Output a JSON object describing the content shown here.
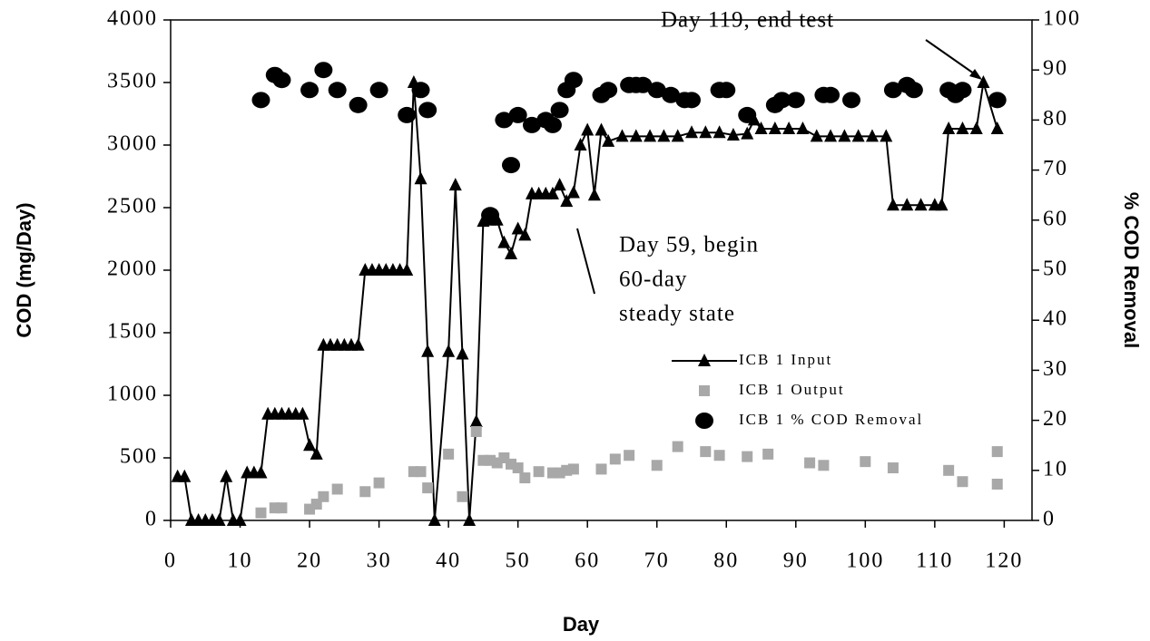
{
  "chart_data": {
    "type": "line",
    "x_label": "Day",
    "y_label": "COD (mg/Day)",
    "y2_label": "% COD Removal",
    "xlim": [
      0,
      124
    ],
    "xticks": [
      0,
      10,
      20,
      30,
      40,
      50,
      60,
      70,
      80,
      90,
      100,
      110,
      120
    ],
    "ylim": [
      0,
      4000
    ],
    "yticks": [
      0,
      500,
      1000,
      1500,
      2000,
      2500,
      3000,
      3500,
      4000
    ],
    "y2lim": [
      0,
      100
    ],
    "y2ticks": [
      0,
      10,
      20,
      30,
      40,
      50,
      60,
      70,
      80,
      90,
      100
    ],
    "annotations": [
      {
        "lines": [
          "Day 119, end test"
        ]
      },
      {
        "lines": [
          "Day 59, begin",
          "60-day",
          "steady state"
        ]
      }
    ],
    "series": [
      {
        "name": "ICB 1 Input",
        "color": "#000000",
        "marker": "triangle",
        "line": true,
        "x": [
          1,
          2,
          3,
          4,
          5,
          6,
          7,
          8,
          9,
          10,
          11,
          12,
          13,
          14,
          15,
          16,
          17,
          18,
          19,
          20,
          21,
          22,
          23,
          24,
          25,
          26,
          27,
          28,
          29,
          30,
          31,
          32,
          33,
          34,
          35,
          36,
          37,
          38,
          40,
          41,
          42,
          43,
          44,
          45,
          46,
          47,
          48,
          49,
          50,
          51,
          52,
          53,
          54,
          55,
          56,
          57,
          58,
          59,
          60,
          61,
          62,
          63,
          65,
          67,
          69,
          71,
          73,
          75,
          77,
          79,
          81,
          83,
          84,
          85,
          87,
          89,
          91,
          93,
          95,
          97,
          99,
          101,
          103,
          104,
          106,
          108,
          110,
          111,
          112,
          114,
          116,
          117,
          119
        ],
        "values": [
          350,
          350,
          0,
          0,
          0,
          0,
          0,
          350,
          0,
          0,
          380,
          380,
          380,
          850,
          850,
          850,
          850,
          850,
          850,
          600,
          530,
          1400,
          1400,
          1400,
          1400,
          1400,
          1400,
          2000,
          2000,
          2000,
          2000,
          2000,
          2000,
          2000,
          3500,
          2730,
          1350,
          0,
          1350,
          2680,
          1330,
          0,
          790,
          2390,
          2400,
          2400,
          2220,
          2130,
          2330,
          2280,
          2610,
          2610,
          2610,
          2610,
          2680,
          2550,
          2620,
          3000,
          3120,
          2600,
          3120,
          3030,
          3070,
          3070,
          3070,
          3070,
          3070,
          3100,
          3100,
          3100,
          3080,
          3090,
          3200,
          3130,
          3130,
          3130,
          3130,
          3070,
          3070,
          3070,
          3070,
          3070,
          3070,
          2520,
          2520,
          2520,
          2520,
          2520,
          3130,
          3130,
          3130,
          3500,
          3130
        ]
      },
      {
        "name": "ICB 1 Output",
        "color": "#a8a8a8",
        "marker": "square",
        "line": false,
        "x": [
          13,
          15,
          16,
          20,
          21,
          22,
          24,
          28,
          30,
          35,
          36,
          37,
          40,
          42,
          44,
          45,
          46,
          47,
          48,
          49,
          50,
          51,
          53,
          55,
          56,
          57,
          58,
          62,
          64,
          66,
          70,
          73,
          77,
          79,
          83,
          86,
          92,
          94,
          100,
          104,
          112,
          114,
          119,
          119
        ],
        "values": [
          60,
          100,
          100,
          90,
          130,
          190,
          250,
          230,
          300,
          390,
          390,
          260,
          530,
          190,
          710,
          480,
          480,
          460,
          500,
          450,
          420,
          340,
          390,
          380,
          380,
          400,
          410,
          410,
          490,
          520,
          440,
          590,
          550,
          520,
          510,
          530,
          460,
          440,
          470,
          420,
          400,
          310,
          290,
          550
        ]
      },
      {
        "name": "ICB 1 % COD Removal",
        "color": "#000000",
        "marker": "circle",
        "line": false,
        "axis": "y2",
        "x": [
          13,
          15,
          16,
          20,
          22,
          24,
          27,
          30,
          34,
          36,
          37,
          46,
          48,
          49,
          50,
          52,
          54,
          55,
          56,
          57,
          58,
          62,
          63,
          66,
          67,
          68,
          70,
          72,
          74,
          75,
          79,
          80,
          83,
          87,
          88,
          90,
          94,
          95,
          98,
          104,
          106,
          107,
          112,
          113,
          114,
          119
        ],
        "values": [
          84,
          89,
          88,
          86,
          90,
          86,
          83,
          86,
          81,
          86,
          82,
          61,
          80,
          71,
          81,
          79,
          80,
          79,
          82,
          86,
          88,
          85,
          86,
          87,
          87,
          87,
          86,
          85,
          84,
          84,
          86,
          86,
          81,
          83,
          84,
          84,
          85,
          85,
          84,
          86,
          87,
          86,
          86,
          85,
          86,
          84
        ]
      }
    ]
  }
}
